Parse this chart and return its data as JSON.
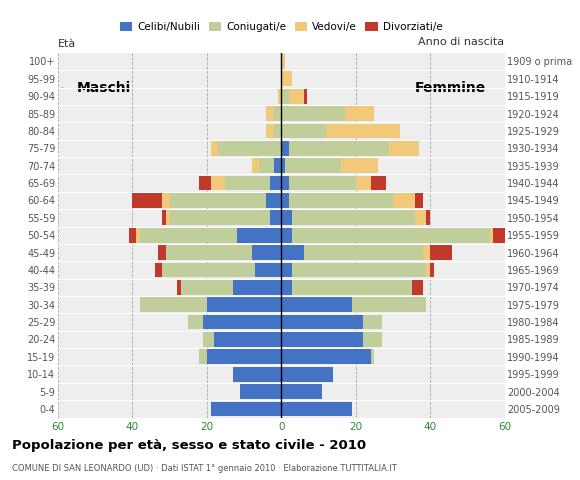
{
  "title": "Popolazione per età, sesso e stato civile - 2010",
  "subtitle": "COMUNE DI SAN LEONARDO (UD) · Dati ISTAT 1° gennaio 2010 · Elaborazione TUTTITALIA.IT",
  "age_groups": [
    "0-4",
    "5-9",
    "10-14",
    "15-19",
    "20-24",
    "25-29",
    "30-34",
    "35-39",
    "40-44",
    "45-49",
    "50-54",
    "55-59",
    "60-64",
    "65-69",
    "70-74",
    "75-79",
    "80-84",
    "85-89",
    "90-94",
    "95-99",
    "100+"
  ],
  "birth_years": [
    "2005-2009",
    "2000-2004",
    "1995-1999",
    "1990-1994",
    "1985-1989",
    "1980-1984",
    "1975-1979",
    "1970-1974",
    "1965-1969",
    "1960-1964",
    "1955-1959",
    "1950-1954",
    "1945-1949",
    "1940-1944",
    "1935-1939",
    "1930-1934",
    "1925-1929",
    "1920-1924",
    "1915-1919",
    "1910-1914",
    "1909 o prima"
  ],
  "colors": {
    "celibi": "#4472C4",
    "coniugati": "#BFCE9A",
    "vedovi": "#F0C97A",
    "divorziati": "#C0392B"
  },
  "males": {
    "celibi": [
      19,
      11,
      13,
      20,
      18,
      21,
      20,
      13,
      7,
      8,
      12,
      3,
      4,
      3,
      2,
      0,
      0,
      0,
      0,
      0,
      0
    ],
    "coniugati": [
      0,
      0,
      0,
      2,
      3,
      4,
      18,
      14,
      25,
      23,
      26,
      27,
      26,
      12,
      4,
      17,
      2,
      2,
      0,
      0,
      0
    ],
    "vedovi": [
      0,
      0,
      0,
      0,
      0,
      0,
      0,
      0,
      0,
      0,
      1,
      1,
      2,
      4,
      2,
      2,
      2,
      2,
      1,
      0,
      0
    ],
    "divorziati": [
      0,
      0,
      0,
      0,
      0,
      0,
      0,
      1,
      2,
      2,
      2,
      1,
      8,
      3,
      0,
      0,
      0,
      0,
      0,
      0,
      0
    ]
  },
  "females": {
    "celibi": [
      19,
      11,
      14,
      24,
      22,
      22,
      19,
      3,
      3,
      6,
      3,
      3,
      2,
      2,
      1,
      2,
      0,
      0,
      0,
      0,
      0
    ],
    "coniugati": [
      0,
      0,
      0,
      1,
      5,
      5,
      20,
      32,
      36,
      32,
      53,
      33,
      28,
      18,
      15,
      27,
      12,
      17,
      2,
      0,
      0
    ],
    "vedovi": [
      0,
      0,
      0,
      0,
      0,
      0,
      0,
      0,
      1,
      2,
      1,
      3,
      6,
      4,
      10,
      8,
      20,
      8,
      4,
      3,
      1
    ],
    "divorziati": [
      0,
      0,
      0,
      0,
      0,
      0,
      0,
      3,
      1,
      6,
      4,
      1,
      2,
      4,
      0,
      0,
      0,
      0,
      1,
      0,
      0
    ]
  },
  "xlim": 60,
  "background_color": "#ffffff",
  "plot_bg": "#eeeeee"
}
